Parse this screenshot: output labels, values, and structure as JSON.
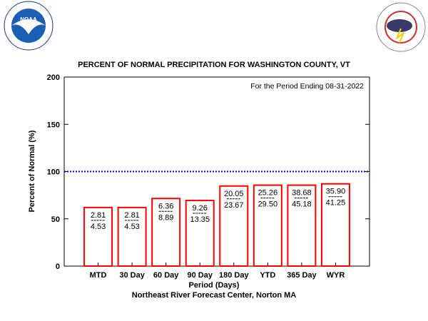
{
  "logos": {
    "left": "NOAA",
    "left_ring": "NATIONAL OCEANIC AND ATMOSPHERIC ADMINISTRATION · U.S. DEPARTMENT OF COMMERCE",
    "right_ring": "NATIONAL WEATHER SERVICE"
  },
  "chart_data": {
    "type": "bar",
    "title": "PERCENT OF NORMAL PRECIPITATION FOR WASHINGTON COUNTY, VT",
    "subtitle": "For the Period Ending 08-31-2022",
    "xlabel": "Period (Days)",
    "ylabel": "Percent of Normal (%)",
    "footer": "Northeast River Forecast Center, Norton MA",
    "categories": [
      "MTD",
      "30 Day",
      "60 Day",
      "90 Day",
      "180 Day",
      "YTD",
      "365 Day",
      "WYR"
    ],
    "values": [
      62,
      62,
      71.5,
      69.4,
      84.7,
      85.6,
      85.6,
      87.0
    ],
    "observed": [
      "2.81",
      "2.81",
      "6.36",
      "9.26",
      "20.05",
      "25.26",
      "38.68",
      "35.90"
    ],
    "normal": [
      "4.53",
      "4.53",
      "8.89",
      "13.35",
      "23.67",
      "29.50",
      "45.18",
      "41.25"
    ],
    "ylim": [
      0,
      200
    ],
    "yticks": [
      0,
      50,
      100,
      150,
      200
    ],
    "reference_line": 100,
    "colors": {
      "bar": "#ff0000",
      "reference": "#0000cc"
    }
  }
}
